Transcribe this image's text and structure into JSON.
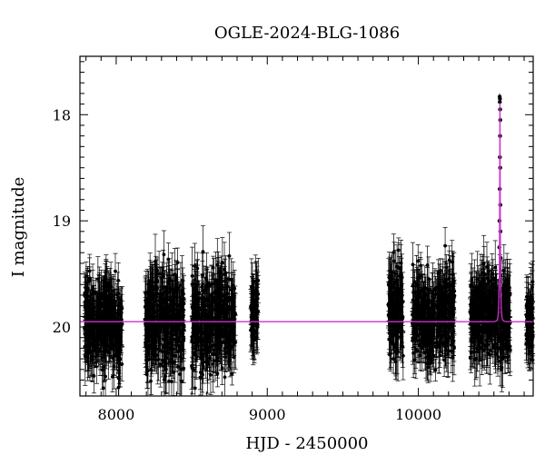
{
  "chart_data": {
    "type": "scatter",
    "title": "OGLE-2024-BLG-1086",
    "xlabel": "HJD - 2450000",
    "ylabel": "I magnitude",
    "xlim": [
      7760,
      10760
    ],
    "ylim": [
      20.65,
      17.45
    ],
    "y_inverted": true,
    "x_ticks": [
      8000,
      9000,
      10000
    ],
    "y_ticks": [
      18,
      19,
      20
    ],
    "grid": false,
    "legend": "none",
    "baseline_mag": 19.95,
    "seasons": [
      {
        "start": 7790,
        "end": 8040,
        "center_mag": 19.95,
        "spread": 0.55
      },
      {
        "start": 8190,
        "end": 8450,
        "center_mag": 19.95,
        "spread": 0.6
      },
      {
        "start": 8500,
        "end": 8790,
        "center_mag": 19.95,
        "spread": 0.6
      },
      {
        "start": 8890,
        "end": 8940,
        "center_mag": 19.9,
        "spread": 0.4
      },
      {
        "start": 9800,
        "end": 9900,
        "center_mag": 19.85,
        "spread": 0.6
      },
      {
        "start": 9960,
        "end": 10240,
        "center_mag": 19.9,
        "spread": 0.55
      },
      {
        "start": 10340,
        "end": 10610,
        "center_mag": 19.9,
        "spread": 0.55
      },
      {
        "start": 10710,
        "end": 10760,
        "center_mag": 19.95,
        "spread": 0.4
      }
    ],
    "event": {
      "t0": 10540,
      "peak_mag": 17.85,
      "tE": 6,
      "points": [
        {
          "x": 10538,
          "y": 17.83
        },
        {
          "x": 10539,
          "y": 17.88
        },
        {
          "x": 10540,
          "y": 17.85
        },
        {
          "x": 10541,
          "y": 17.95
        },
        {
          "x": 10542,
          "y": 18.05
        },
        {
          "x": 10540.5,
          "y": 18.2
        },
        {
          "x": 10539.5,
          "y": 18.4
        },
        {
          "x": 10541.5,
          "y": 18.5
        },
        {
          "x": 10538.5,
          "y": 18.7
        },
        {
          "x": 10542.5,
          "y": 18.85
        },
        {
          "x": 10537,
          "y": 19.0
        },
        {
          "x": 10543,
          "y": 19.1
        },
        {
          "x": 10536,
          "y": 19.25
        },
        {
          "x": 10545,
          "y": 19.35
        }
      ]
    },
    "colors": {
      "points": "#000000",
      "model": "#cc33cc",
      "frame": "#000000"
    }
  }
}
